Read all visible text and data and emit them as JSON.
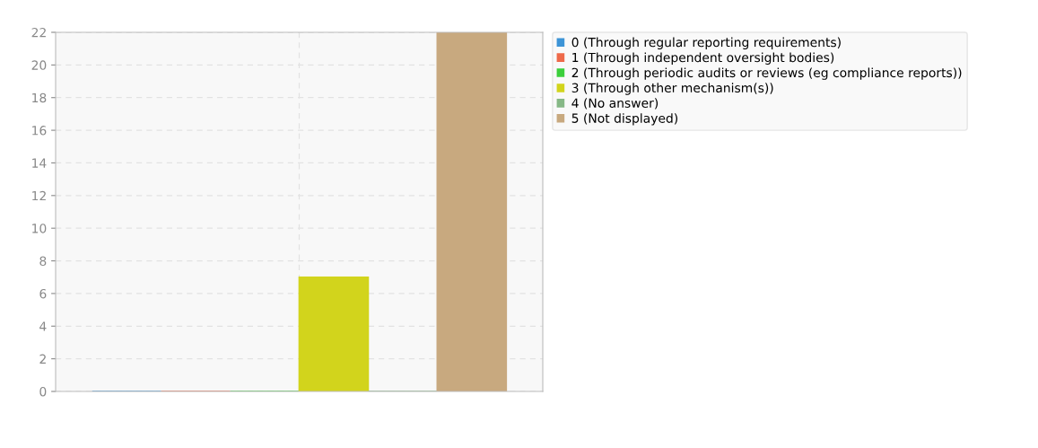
{
  "chart_data": {
    "type": "bar",
    "categories": [
      null
    ],
    "series": [
      {
        "name": "0 (Through regular reporting requirements)",
        "color": "#3d94d6",
        "values": [
          0
        ]
      },
      {
        "name": "1 (Through independent oversight bodies)",
        "color": "#ee6a4a",
        "values": [
          0
        ]
      },
      {
        "name": "2 (Through periodic audits or reviews (eg compliance reports))",
        "color": "#3ccf3c",
        "values": [
          0
        ]
      },
      {
        "name": "3 (Through other mechanism(s))",
        "color": "#d2d41c",
        "values": [
          7
        ]
      },
      {
        "name": "4 (No answer)",
        "color": "#86b886",
        "values": [
          0
        ]
      },
      {
        "name": "5 (Not displayed)",
        "color": "#c8a97f",
        "values": [
          22
        ]
      }
    ],
    "ylim": [
      0,
      22
    ],
    "yticks": [
      0,
      2,
      4,
      6,
      8,
      10,
      12,
      14,
      16,
      18,
      20,
      22
    ],
    "grid": true,
    "legend": "top right"
  }
}
